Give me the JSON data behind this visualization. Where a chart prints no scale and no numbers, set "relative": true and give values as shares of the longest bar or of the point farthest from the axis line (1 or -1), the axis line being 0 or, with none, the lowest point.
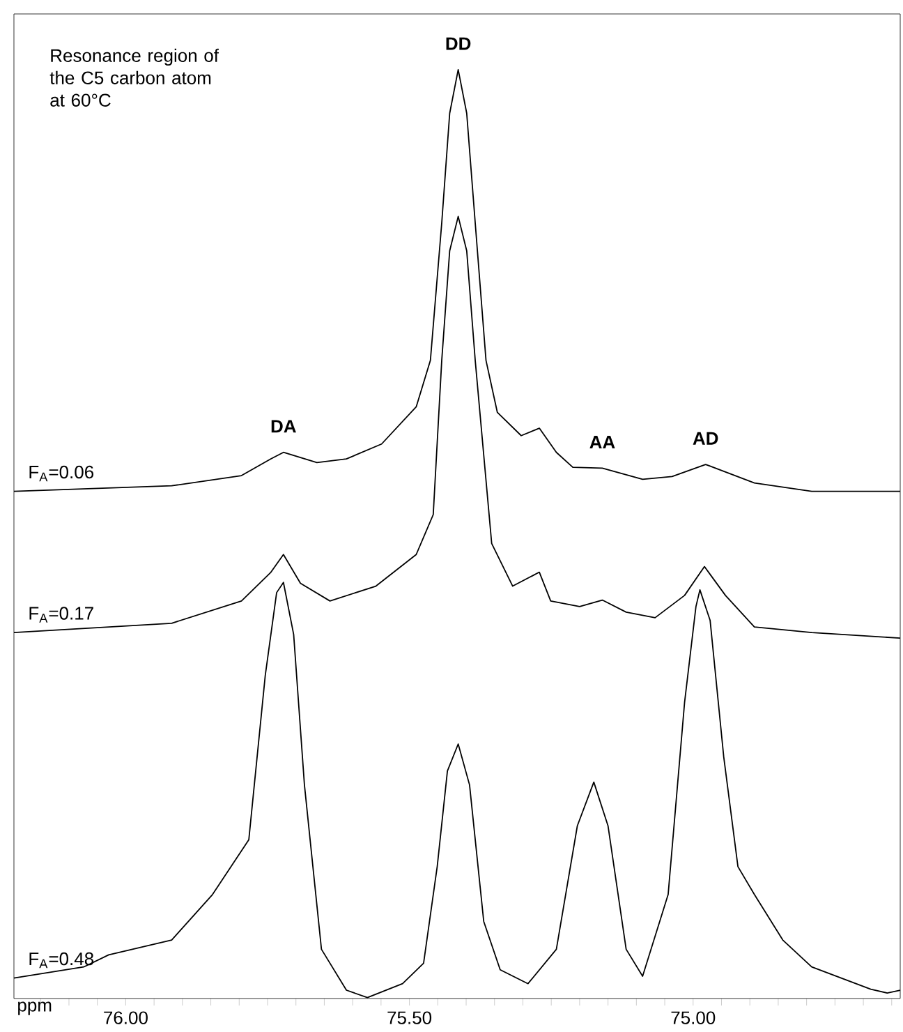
{
  "chart_data": {
    "type": "line",
    "relative": true,
    "xlabel": "ppm",
    "xlim": [
      76.197,
      74.635
    ],
    "xticks": [
      {
        "value": 76.15,
        "label": null
      },
      {
        "value": 76.1,
        "label": null
      },
      {
        "value": 76.05,
        "label": null
      },
      {
        "value": 76.0,
        "label": "76.00"
      },
      {
        "value": 75.95,
        "label": null
      },
      {
        "value": 75.9,
        "label": null
      },
      {
        "value": 75.85,
        "label": null
      },
      {
        "value": 75.8,
        "label": null
      },
      {
        "value": 75.75,
        "label": null
      },
      {
        "value": 75.7,
        "label": null
      },
      {
        "value": 75.65,
        "label": null
      },
      {
        "value": 75.6,
        "label": null
      },
      {
        "value": 75.55,
        "label": null
      },
      {
        "value": 75.5,
        "label": "75.50"
      },
      {
        "value": 75.45,
        "label": null
      },
      {
        "value": 75.4,
        "label": null
      },
      {
        "value": 75.35,
        "label": null
      },
      {
        "value": 75.3,
        "label": null
      },
      {
        "value": 75.25,
        "label": null
      },
      {
        "value": 75.2,
        "label": null
      },
      {
        "value": 75.15,
        "label": null
      },
      {
        "value": 75.1,
        "label": null
      },
      {
        "value": 75.05,
        "label": null
      },
      {
        "value": 75.0,
        "label": "75.00"
      },
      {
        "value": 74.95,
        "label": null
      },
      {
        "value": 74.9,
        "label": null
      },
      {
        "value": 74.85,
        "label": null
      },
      {
        "value": 74.8,
        "label": null
      },
      {
        "value": 74.75,
        "label": null
      },
      {
        "value": 74.7,
        "label": null
      },
      {
        "value": 74.65,
        "label": null
      }
    ],
    "tick_labels": "x",
    "series": [
      {
        "name": "F$_{A}$=0.06",
        "color": "#000000",
        "x": [
          76.197,
          75.919,
          75.796,
          75.744,
          75.722,
          75.663,
          75.611,
          75.549,
          75.488,
          75.463,
          75.443,
          75.429,
          75.414,
          75.399,
          75.384,
          75.365,
          75.345,
          75.303,
          75.271,
          75.241,
          75.212,
          75.16,
          75.089,
          75.037,
          74.978,
          74.892,
          74.791,
          74.635
        ],
        "values": [
          0.546,
          0.552,
          0.563,
          0.581,
          0.588,
          0.577,
          0.581,
          0.597,
          0.637,
          0.687,
          0.835,
          0.953,
          1.0,
          0.953,
          0.835,
          0.687,
          0.631,
          0.606,
          0.614,
          0.588,
          0.572,
          0.571,
          0.559,
          0.562,
          0.575,
          0.555,
          0.546,
          0.546
        ]
      },
      {
        "name": "F$_{A}$=0.17",
        "color": "#000000",
        "x": [
          76.197,
          75.919,
          75.796,
          75.744,
          75.722,
          75.692,
          75.64,
          75.559,
          75.488,
          75.458,
          75.443,
          75.429,
          75.414,
          75.399,
          75.384,
          75.355,
          75.318,
          75.271,
          75.251,
          75.2,
          75.16,
          75.118,
          75.067,
          75.015,
          74.98,
          74.943,
          74.892,
          74.791,
          74.635
        ],
        "values": [
          0.394,
          0.404,
          0.428,
          0.459,
          0.478,
          0.447,
          0.428,
          0.444,
          0.478,
          0.521,
          0.687,
          0.805,
          0.842,
          0.805,
          0.687,
          0.49,
          0.444,
          0.459,
          0.428,
          0.422,
          0.429,
          0.416,
          0.41,
          0.434,
          0.465,
          0.434,
          0.4,
          0.394,
          0.388
        ]
      },
      {
        "name": "F$_{A}$=0.48",
        "color": "#000000",
        "x": [
          76.197,
          76.074,
          76.03,
          75.919,
          75.847,
          75.783,
          75.754,
          75.734,
          75.722,
          75.704,
          75.685,
          75.655,
          75.611,
          75.574,
          75.512,
          75.475,
          75.451,
          75.433,
          75.414,
          75.394,
          75.369,
          75.34,
          75.291,
          75.241,
          75.204,
          75.175,
          75.15,
          75.118,
          75.089,
          75.044,
          75.015,
          74.995,
          74.988,
          74.97,
          74.946,
          74.921,
          74.892,
          74.842,
          74.791,
          74.687,
          74.658,
          74.635
        ],
        "values": [
          0.022,
          0.034,
          0.047,
          0.063,
          0.112,
          0.171,
          0.348,
          0.437,
          0.448,
          0.392,
          0.23,
          0.053,
          0.009,
          0.001,
          0.016,
          0.038,
          0.142,
          0.245,
          0.274,
          0.23,
          0.083,
          0.031,
          0.016,
          0.053,
          0.186,
          0.233,
          0.186,
          0.053,
          0.024,
          0.112,
          0.319,
          0.422,
          0.44,
          0.407,
          0.26,
          0.142,
          0.112,
          0.063,
          0.034,
          0.01,
          0.006,
          0.009
        ]
      }
    ],
    "annotations": [
      "Resonance region of the C5 carbon atom at 60°C",
      {
        "text": "DA",
        "x": 75.722,
        "y": 0.588
      },
      {
        "text": "DD",
        "x": 75.414,
        "y": 1.0
      },
      {
        "text": "AA",
        "x": 75.16,
        "y": 0.571
      },
      {
        "text": "AD",
        "x": 74.978,
        "y": 0.575
      }
    ]
  }
}
